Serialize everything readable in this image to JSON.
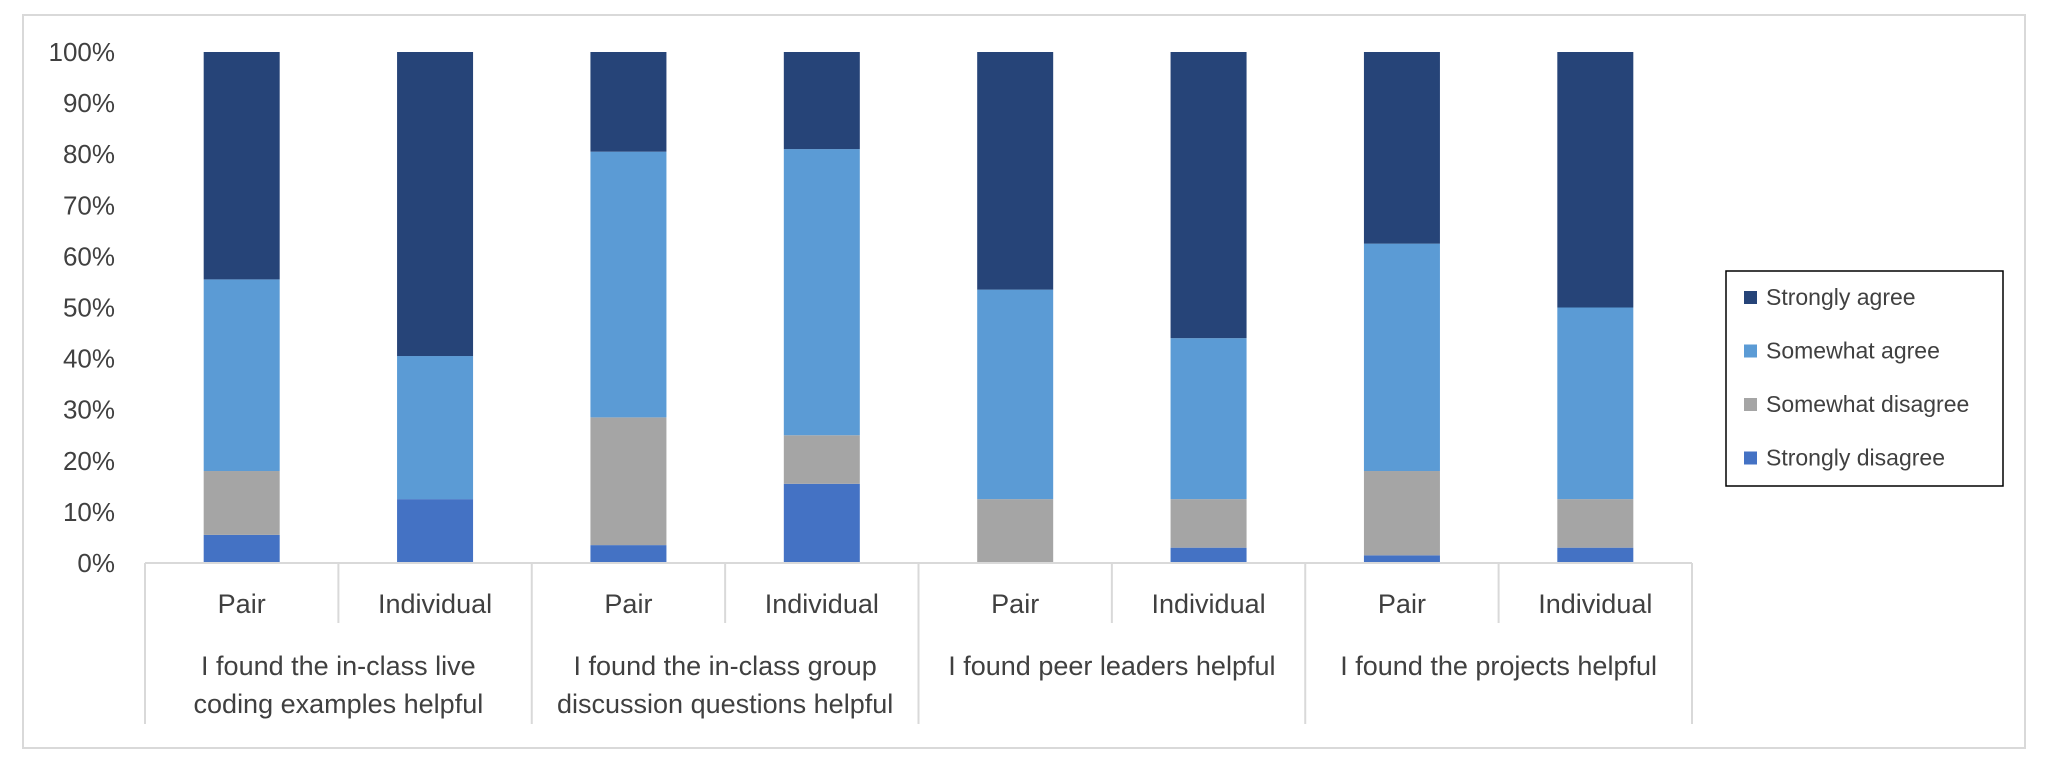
{
  "chart_data": {
    "type": "bar",
    "stacked": true,
    "percent_scale": true,
    "ylim": [
      0,
      100
    ],
    "y_ticks": [
      "0%",
      "10%",
      "20%",
      "30%",
      "40%",
      "50%",
      "60%",
      "70%",
      "80%",
      "90%",
      "100%"
    ],
    "grid": false,
    "legend_position": "right",
    "groups": [
      {
        "label": "I found the in-class live coding examples helpful",
        "lines": [
          "I found the in-class live",
          "coding examples helpful"
        ],
        "categories": [
          "Pair",
          "Individual"
        ]
      },
      {
        "label": "I found the in-class group discussion questions helpful",
        "lines": [
          "I found the in-class group",
          "discussion questions helpful"
        ],
        "categories": [
          "Pair",
          "Individual"
        ]
      },
      {
        "label": "I found peer leaders helpful",
        "lines": [
          "I found peer leaders helpful"
        ],
        "categories": [
          "Pair",
          "Individual"
        ]
      },
      {
        "label": "I found the projects helpful",
        "lines": [
          "I found the projects helpful"
        ],
        "categories": [
          "Pair",
          "Individual"
        ]
      }
    ],
    "categories": [
      "Pair",
      "Individual",
      "Pair",
      "Individual",
      "Pair",
      "Individual",
      "Pair",
      "Individual"
    ],
    "series": [
      {
        "name": "Strongly disagree",
        "color": "#4472c4",
        "values": [
          5.5,
          12.5,
          3.5,
          15.5,
          0,
          3,
          1.5,
          3
        ]
      },
      {
        "name": "Somewhat disagree",
        "color": "#a5a5a5",
        "values": [
          12.5,
          0,
          25,
          9.5,
          12.5,
          9.5,
          16.5,
          9.5
        ]
      },
      {
        "name": "Somewhat agree",
        "color": "#5b9bd5",
        "values": [
          37.5,
          28,
          52,
          56,
          41,
          31.5,
          44.5,
          37.5
        ]
      },
      {
        "name": "Strongly agree",
        "color": "#264478",
        "values": [
          44.5,
          59.5,
          19.5,
          19,
          46.5,
          56,
          37.5,
          50
        ]
      }
    ],
    "legend_order": [
      "Strongly agree",
      "Somewhat agree",
      "Somewhat disagree",
      "Strongly disagree"
    ]
  }
}
